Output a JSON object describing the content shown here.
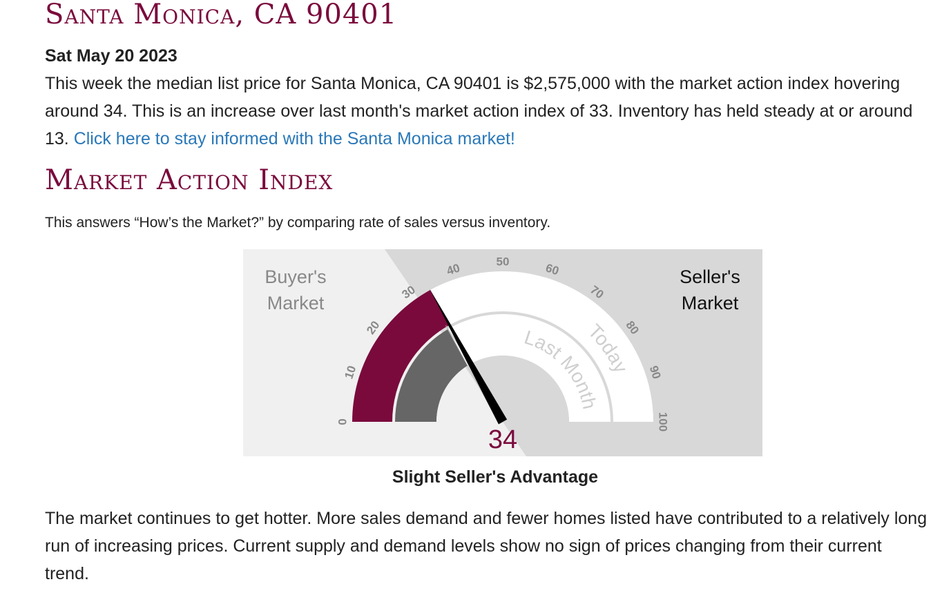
{
  "header": {
    "title": "Santa Monica, CA 90401",
    "date": "Sat May 20 2023"
  },
  "summary": {
    "text": "This week the median list price for Santa Monica, CA 90401 is $2,575,000 with the market action index hovering around 34. This is an increase over last month's market action index of 33. Inventory has held steady at or around 13. ",
    "link_text": "Click here to stay informed with the Santa Monica market!"
  },
  "market_action": {
    "section_title": "Market Action Index",
    "description": "This answers “How’s the Market?” by comparing rate of sales versus inventory.",
    "verdict": "Slight Seller's Advantage",
    "outlook": "The market continues to get hotter. More sales demand and fewer homes listed have contributed to a relatively long run of increasing prices. Current supply and demand levels show no sign of prices changing from their current trend."
  },
  "gauge": {
    "buyers_label_line1": "Buyer's",
    "buyers_label_line2": "Market",
    "sellers_label_line1": "Seller's",
    "sellers_label_line2": "Market",
    "today_label": "Today",
    "last_month_label": "Last Month",
    "value_display": "34",
    "today_value": 34,
    "last_month_value": 33,
    "min": 0,
    "max": 100,
    "ticks": [
      "0",
      "10",
      "20",
      "30",
      "40",
      "50",
      "60",
      "70",
      "80",
      "90",
      "100"
    ],
    "colors": {
      "accent": "#7a0a3c",
      "last_month": "#666666",
      "buyers_bg": "#f0f0f0",
      "sellers_bg": "#d8d8d8",
      "needle": "#000000"
    }
  }
}
